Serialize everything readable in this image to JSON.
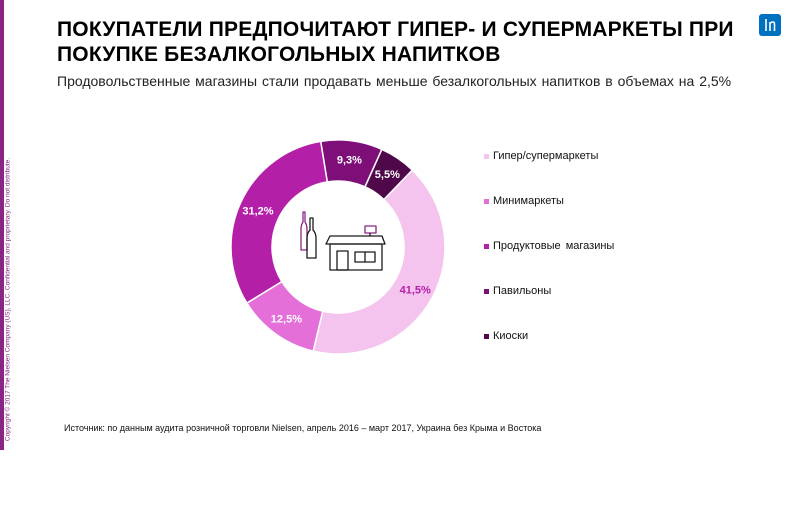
{
  "header": {
    "title": "ПОКУПАТЕЛИ ПРЕДПОЧИТАЮТ ГИПЕР- И СУПЕРМАРКЕТЫ ПРИ ПОКУПКЕ БЕЗАЛКОГОЛЬНЫХ НАПИТКОВ",
    "subtitle": "Продовольственные магазины стали продавать меньше безалкогольных напитков в объемах на 2,5%"
  },
  "sidebar": {
    "copyright": "Copyright © 2017 The Nielsen Company (US), LLC. Confidential and proprietary. Do not distribute."
  },
  "footer": {
    "source": "Источник: по данным аудита розничной торговли Nielsen, апрель 2016 – март 2017, Украина без Крыма и Востока"
  },
  "brand": {
    "logo_icon": "nielsen-logo-icon",
    "logo_color": "#0070c0",
    "accent_color": "#8a2586"
  },
  "chart_data": {
    "type": "pie",
    "variant": "donut",
    "title": "",
    "categories": [
      "Гипер/супермаркеты",
      "Минимаркеты",
      "Продуктовые  магазины",
      "Павильоны",
      "Киоски"
    ],
    "values": [
      41.5,
      12.5,
      31.2,
      9.3,
      5.5
    ],
    "labels": [
      "41,5%",
      "12,5%",
      "31,2%",
      "9,3%",
      "5,5%"
    ],
    "colors": [
      "#f4c4ee",
      "#e46fd9",
      "#b41fa8",
      "#7e0e78",
      "#4f0849"
    ],
    "label_colors": [
      "#b41fa8",
      "#ffffff",
      "#ffffff",
      "#ffffff",
      "#ffffff"
    ],
    "start_angle_deg": 44,
    "legend_position": "right",
    "center_icon": "store-and-bottles-icon"
  }
}
